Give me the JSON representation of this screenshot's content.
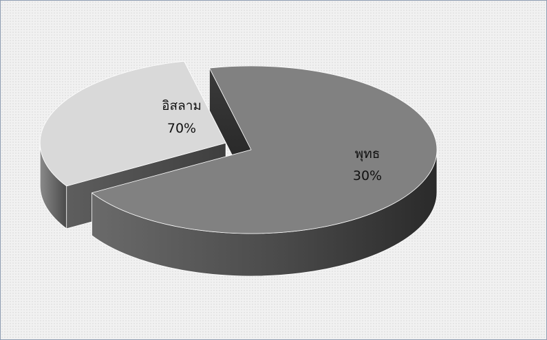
{
  "chart_data": {
    "type": "pie",
    "style": "3d-exploded",
    "slices": [
      {
        "label": "อิสลาม",
        "value": 70,
        "value_label": "70%",
        "color": "#818181"
      },
      {
        "label": "พุทธ",
        "value": 30,
        "value_label": "30%",
        "color": "#d9d9d9"
      }
    ],
    "exploded": "พุทธ",
    "legend": "none"
  }
}
